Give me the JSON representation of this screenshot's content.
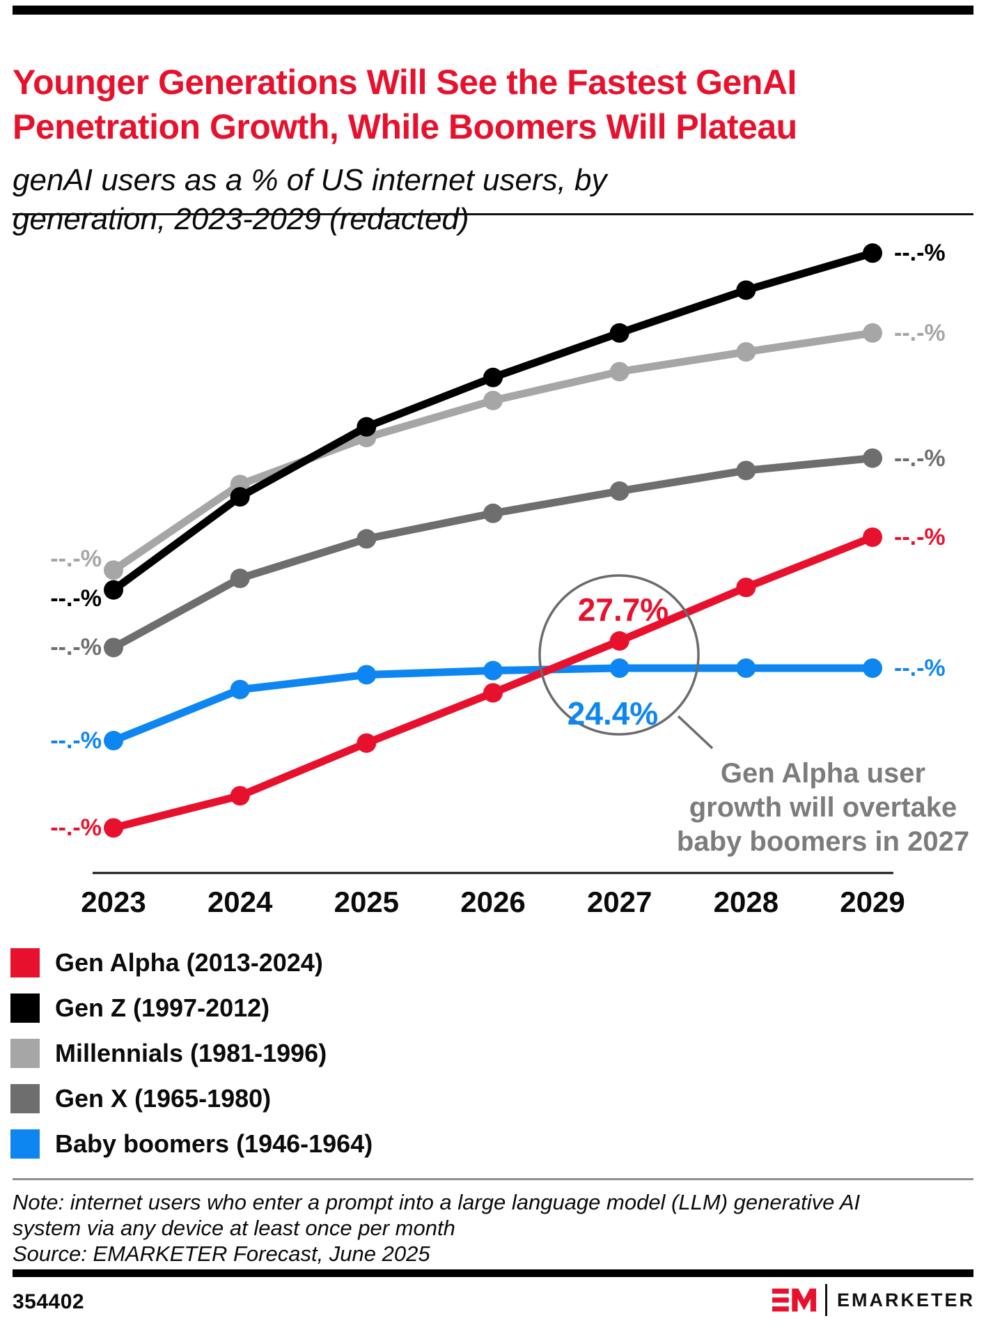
{
  "header": {
    "title": "Younger Generations Will See the Fastest GenAI Penetration Growth, While Boomers Will Plateau",
    "subtitle": "genAI users as a % of US internet users, by generation, 2023-2029 (redacted)"
  },
  "chart_data": {
    "type": "line",
    "title": "genAI users as a % of US internet users, by generation, 2023-2029 (redacted)",
    "categories": [
      "2023",
      "2024",
      "2025",
      "2026",
      "2027",
      "2028",
      "2029"
    ],
    "xlabel": "",
    "ylabel": "genAI users as % of US internet users",
    "ylim": [
      0,
      80
    ],
    "grid": false,
    "legend_position": "bottom-left",
    "redacted_label": "--.-%",
    "values_note": "All on-chart data labels are redacted as --.-% except the two annotated 2027 values (27.7% Gen Alpha, 24.4% Baby boomers); other values are estimated from the plotted line positions.",
    "series": [
      {
        "id": "gen-alpha",
        "name": "Gen Alpha (2013-2024)",
        "color": "#e8112d",
        "values": [
          5.0,
          8.9,
          15.3,
          21.4,
          27.7,
          34.2,
          40.3
        ]
      },
      {
        "id": "gen-z",
        "name": "Gen Z (1997-2012)",
        "color": "#000000",
        "values": [
          33.9,
          45.2,
          53.7,
          59.7,
          65.1,
          70.3,
          74.8
        ]
      },
      {
        "id": "millennials",
        "name": "Millennials (1981-1996)",
        "color": "#a6a6a6",
        "values": [
          36.3,
          46.7,
          52.4,
          56.9,
          60.4,
          62.8,
          65.1
        ]
      },
      {
        "id": "gen-x",
        "name": "Gen X (1965-1980)",
        "color": "#6e6e6e",
        "values": [
          26.9,
          35.3,
          40.1,
          43.2,
          45.9,
          48.4,
          49.9
        ]
      },
      {
        "id": "baby-boomers",
        "name": "Baby boomers (1946-1964)",
        "color": "#0e86f1",
        "values": [
          15.6,
          21.8,
          23.6,
          24.1,
          24.4,
          24.4,
          24.4
        ]
      }
    ]
  },
  "annotation": {
    "alpha_value": "27.7%",
    "boomer_value": "24.4%",
    "note_lines": [
      "Gen Alpha user",
      "growth will overtake",
      "baby boomers in 2027"
    ]
  },
  "legend": {
    "items": [
      {
        "label": "Gen Alpha (2013-2024)",
        "color": "#e8112d"
      },
      {
        "label": "Gen Z (1997-2012)",
        "color": "#000000"
      },
      {
        "label": "Millennials (1981-1996)",
        "color": "#a6a6a6"
      },
      {
        "label": "Gen X (1965-1980)",
        "color": "#6e6e6e"
      },
      {
        "label": "Baby boomers (1946-1964)",
        "color": "#0e86f1"
      }
    ]
  },
  "footer": {
    "note_line1": "Note: internet users who enter a prompt into a large language model (LLM) generative AI",
    "note_line2": "system via any device at least once per month",
    "source": "Source: EMARKETER Forecast, June 2025",
    "chart_id": "354402",
    "brand_name": "EMARKETER"
  }
}
